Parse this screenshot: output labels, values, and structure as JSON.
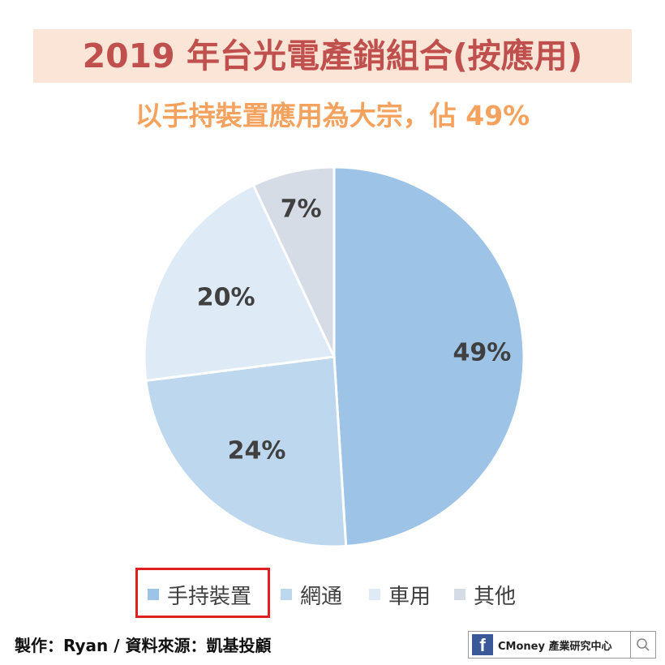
{
  "chart_data": {
    "type": "pie",
    "title": "2019 年台光電產銷組合(按應用)",
    "subtitle": "以手持裝置應用為大宗，佔 49%",
    "categories": [
      "手持裝置",
      "網通",
      "車用",
      "其他"
    ],
    "values": [
      49,
      24,
      20,
      7
    ],
    "labels": [
      "49%",
      "24%",
      "20%",
      "7%"
    ],
    "colors": [
      "#9dc3e6",
      "#bdd7ee",
      "#deebf7",
      "#d6dce5"
    ],
    "legend_position": "bottom",
    "highlighted_legend_item": "手持裝置"
  },
  "footer": {
    "credit": "製作：Ryan / 資料來源：凱基投顧",
    "brand_icon": "facebook-icon",
    "brand_letter": "f",
    "brand_name": "CMoney 產業研究中心",
    "search_icon": "magnifier-icon"
  }
}
